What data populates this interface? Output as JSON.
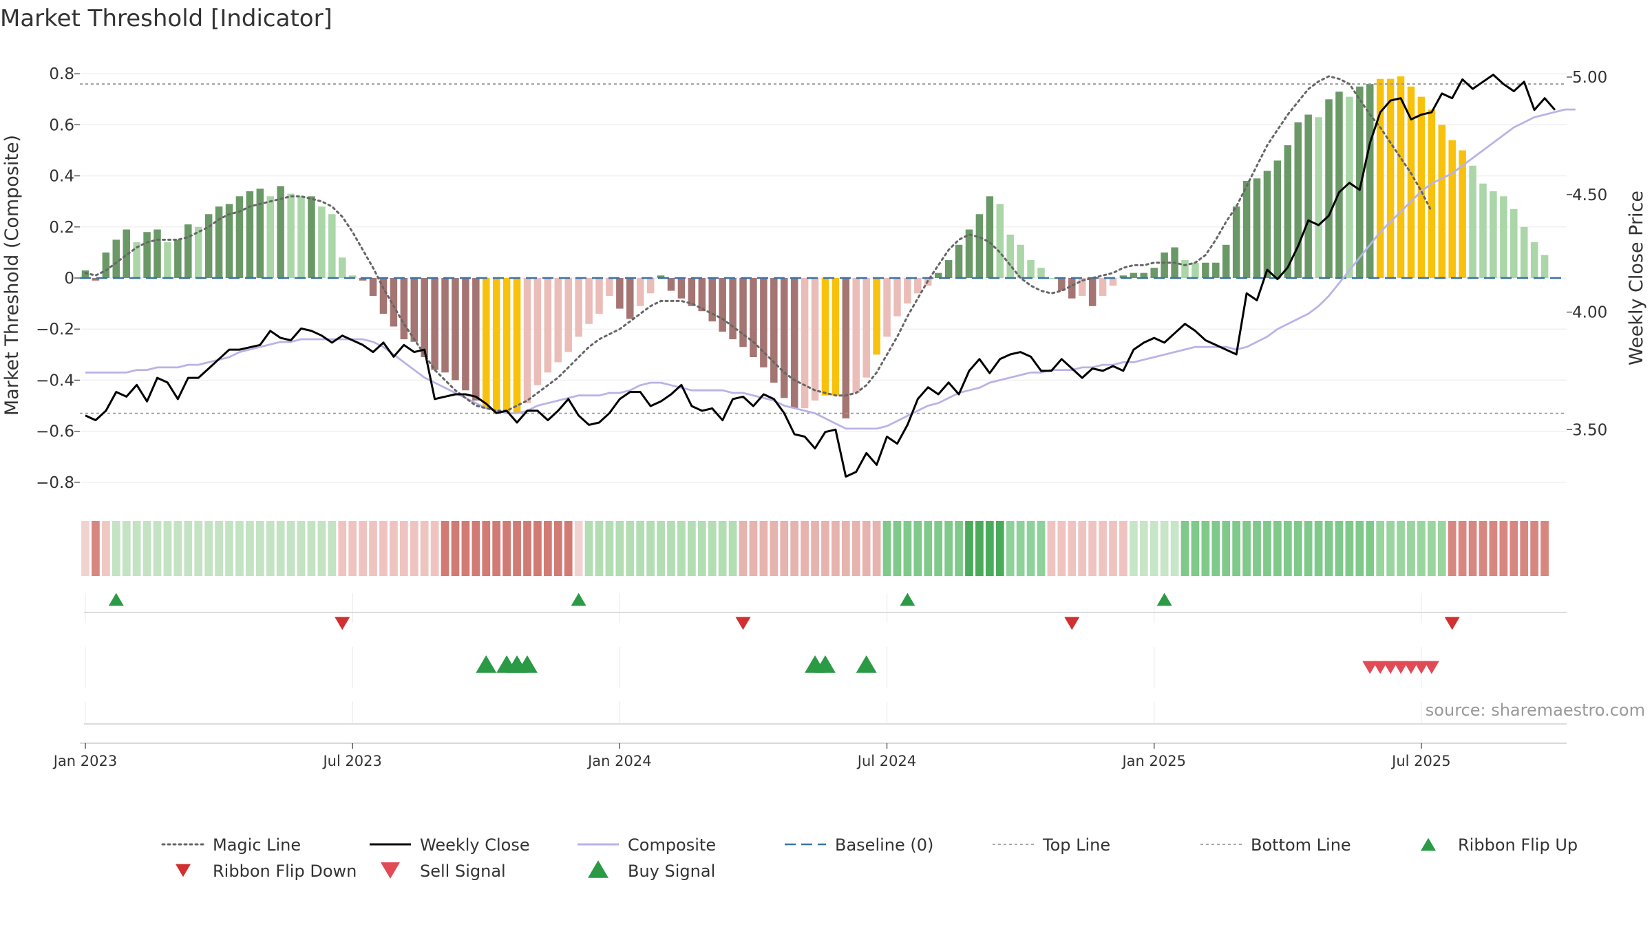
{
  "chart_data": {
    "type": "bar",
    "title": "Market Threshold [Indicator]",
    "ylabel": "Market Threshold (Composite)",
    "y2label": "Weekly Close Price",
    "ylim": [
      -0.86,
      0.84
    ],
    "y2lim": [
      3.2,
      5.06
    ],
    "yticks": [
      {
        "v": 0.8,
        "label": "0.8"
      },
      {
        "v": 0.6,
        "label": "0.6"
      },
      {
        "v": 0.4,
        "label": "0.4"
      },
      {
        "v": 0.2,
        "label": "0.2"
      },
      {
        "v": 0,
        "label": "0"
      },
      {
        "v": -0.2,
        "label": "−0.2"
      },
      {
        "v": -0.4,
        "label": "−0.4"
      },
      {
        "v": -0.6,
        "label": "−0.6"
      },
      {
        "v": -0.8,
        "label": "−0.8"
      }
    ],
    "y2ticks": [
      {
        "v": 5.0,
        "label": "5.00"
      },
      {
        "v": 4.5,
        "label": "4.50"
      },
      {
        "v": 4.0,
        "label": "4.00"
      },
      {
        "v": 3.5,
        "label": "3.50"
      }
    ],
    "xticks": [
      {
        "week": 0,
        "label": "Jan 2023"
      },
      {
        "week": 26,
        "label": "Jul 2023"
      },
      {
        "week": 52,
        "label": "Jan 2024"
      },
      {
        "week": 78,
        "label": "Jul 2024"
      },
      {
        "week": 104,
        "label": "Jan 2025"
      },
      {
        "week": 130,
        "label": "Jul 2025"
      }
    ],
    "top_line": 0.76,
    "bottom_line": -0.53,
    "histogram": [
      0.03,
      -0.01,
      0.1,
      0.15,
      0.19,
      0.14,
      0.18,
      0.19,
      0.14,
      0.15,
      0.21,
      0.2,
      0.25,
      0.28,
      0.29,
      0.32,
      0.34,
      0.35,
      0.32,
      0.36,
      0.33,
      0.32,
      0.32,
      0.28,
      0.25,
      0.08,
      0.01,
      -0.01,
      -0.07,
      -0.14,
      -0.19,
      -0.24,
      -0.25,
      -0.31,
      -0.36,
      -0.37,
      -0.4,
      -0.44,
      -0.48,
      -0.51,
      -0.53,
      -0.53,
      -0.53,
      -0.49,
      -0.42,
      -0.37,
      -0.33,
      -0.29,
      -0.23,
      -0.18,
      -0.14,
      -0.07,
      -0.12,
      -0.16,
      -0.11,
      -0.06,
      0.01,
      -0.05,
      -0.08,
      -0.11,
      -0.13,
      -0.17,
      -0.21,
      -0.24,
      -0.27,
      -0.31,
      -0.35,
      -0.41,
      -0.47,
      -0.51,
      -0.51,
      -0.48,
      -0.46,
      -0.46,
      -0.55,
      -0.45,
      -0.39,
      -0.3,
      -0.23,
      -0.15,
      -0.1,
      -0.06,
      -0.03,
      0.02,
      0.07,
      0.13,
      0.19,
      0.25,
      0.32,
      0.29,
      0.17,
      0.13,
      0.07,
      0.04,
      0.0,
      -0.05,
      -0.08,
      -0.07,
      -0.11,
      -0.07,
      -0.03,
      0.01,
      0.02,
      0.02,
      0.04,
      0.1,
      0.12,
      0.07,
      0.06,
      0.06,
      0.06,
      0.13,
      0.28,
      0.38,
      0.39,
      0.42,
      0.46,
      0.52,
      0.61,
      0.64,
      0.63,
      0.7,
      0.73,
      0.71,
      0.75,
      0.76,
      0.78,
      0.78,
      0.79,
      0.75,
      0.71,
      0.66,
      0.6,
      0.54,
      0.5,
      0.44,
      0.37,
      0.34,
      0.32,
      0.27,
      0.2,
      0.14,
      0.09
    ],
    "highlight_bars": [
      39,
      40,
      41,
      42,
      72,
      73,
      77,
      126,
      127,
      128,
      129,
      130,
      131,
      132,
      133,
      134
    ],
    "magic_line": [
      0.02,
      0.01,
      0.03,
      0.06,
      0.09,
      0.12,
      0.14,
      0.15,
      0.15,
      0.15,
      0.16,
      0.18,
      0.2,
      0.23,
      0.25,
      0.26,
      0.28,
      0.29,
      0.3,
      0.31,
      0.32,
      0.32,
      0.31,
      0.3,
      0.28,
      0.24,
      0.18,
      0.11,
      0.04,
      -0.04,
      -0.11,
      -0.18,
      -0.24,
      -0.3,
      -0.36,
      -0.4,
      -0.44,
      -0.47,
      -0.5,
      -0.51,
      -0.52,
      -0.52,
      -0.5,
      -0.48,
      -0.45,
      -0.42,
      -0.39,
      -0.35,
      -0.31,
      -0.27,
      -0.24,
      -0.22,
      -0.2,
      -0.17,
      -0.14,
      -0.11,
      -0.09,
      -0.09,
      -0.09,
      -0.1,
      -0.12,
      -0.14,
      -0.16,
      -0.19,
      -0.22,
      -0.25,
      -0.29,
      -0.33,
      -0.37,
      -0.4,
      -0.42,
      -0.44,
      -0.45,
      -0.46,
      -0.46,
      -0.45,
      -0.42,
      -0.37,
      -0.3,
      -0.23,
      -0.15,
      -0.08,
      -0.01,
      0.05,
      0.11,
      0.15,
      0.17,
      0.16,
      0.14,
      0.1,
      0.05,
      0.0,
      -0.03,
      -0.05,
      -0.06,
      -0.05,
      -0.03,
      -0.01,
      0.0,
      0.01,
      0.02,
      0.04,
      0.05,
      0.05,
      0.06,
      0.06,
      0.06,
      0.05,
      0.06,
      0.09,
      0.15,
      0.22,
      0.28,
      0.36,
      0.44,
      0.52,
      0.58,
      0.64,
      0.69,
      0.74,
      0.77,
      0.79,
      0.78,
      0.76,
      0.7,
      0.64,
      0.59,
      0.53,
      0.47,
      0.41,
      0.34,
      0.26
    ],
    "weekly_close": [
      3.56,
      3.54,
      3.58,
      3.66,
      3.64,
      3.69,
      3.62,
      3.72,
      3.7,
      3.63,
      3.72,
      3.72,
      3.76,
      3.8,
      3.84,
      3.84,
      3.85,
      3.86,
      3.92,
      3.89,
      3.88,
      3.93,
      3.92,
      3.9,
      3.87,
      3.9,
      3.88,
      3.86,
      3.83,
      3.87,
      3.81,
      3.86,
      3.83,
      3.84,
      3.63,
      3.64,
      3.65,
      3.65,
      3.64,
      3.61,
      3.57,
      3.58,
      3.53,
      3.58,
      3.58,
      3.54,
      3.58,
      3.63,
      3.56,
      3.52,
      3.53,
      3.57,
      3.63,
      3.66,
      3.66,
      3.6,
      3.62,
      3.65,
      3.69,
      3.6,
      3.58,
      3.59,
      3.54,
      3.63,
      3.64,
      3.6,
      3.65,
      3.63,
      3.57,
      3.48,
      3.47,
      3.42,
      3.49,
      3.5,
      3.3,
      3.32,
      3.4,
      3.35,
      3.47,
      3.44,
      3.52,
      3.63,
      3.68,
      3.65,
      3.7,
      3.65,
      3.75,
      3.8,
      3.74,
      3.8,
      3.82,
      3.83,
      3.81,
      3.75,
      3.75,
      3.8,
      3.76,
      3.72,
      3.76,
      3.75,
      3.77,
      3.75,
      3.84,
      3.87,
      3.89,
      3.87,
      3.91,
      3.95,
      3.92,
      3.88,
      3.86,
      3.84,
      3.82,
      4.08,
      4.05,
      4.18,
      4.14,
      4.19,
      4.28,
      4.39,
      4.37,
      4.41,
      4.51,
      4.55,
      4.52,
      4.72,
      4.85,
      4.9,
      4.91,
      4.82,
      4.84,
      4.85,
      4.93,
      4.91,
      4.99,
      4.95,
      4.98,
      5.01,
      4.97,
      4.94,
      4.98,
      4.86,
      4.91,
      4.86
    ],
    "composite": [
      -0.37,
      -0.37,
      -0.37,
      -0.37,
      -0.37,
      -0.36,
      -0.36,
      -0.35,
      -0.35,
      -0.35,
      -0.34,
      -0.34,
      -0.33,
      -0.32,
      -0.31,
      -0.29,
      -0.28,
      -0.27,
      -0.26,
      -0.25,
      -0.25,
      -0.24,
      -0.24,
      -0.24,
      -0.24,
      -0.24,
      -0.24,
      -0.24,
      -0.25,
      -0.27,
      -0.3,
      -0.33,
      -0.36,
      -0.39,
      -0.41,
      -0.43,
      -0.45,
      -0.47,
      -0.49,
      -0.51,
      -0.52,
      -0.53,
      -0.53,
      -0.52,
      -0.5,
      -0.49,
      -0.48,
      -0.47,
      -0.46,
      -0.46,
      -0.46,
      -0.45,
      -0.45,
      -0.44,
      -0.42,
      -0.41,
      -0.41,
      -0.42,
      -0.43,
      -0.44,
      -0.44,
      -0.44,
      -0.44,
      -0.45,
      -0.45,
      -0.46,
      -0.47,
      -0.48,
      -0.5,
      -0.51,
      -0.52,
      -0.53,
      -0.55,
      -0.57,
      -0.59,
      -0.59,
      -0.59,
      -0.59,
      -0.58,
      -0.56,
      -0.54,
      -0.52,
      -0.5,
      -0.49,
      -0.47,
      -0.45,
      -0.44,
      -0.43,
      -0.41,
      -0.4,
      -0.39,
      -0.38,
      -0.37,
      -0.37,
      -0.36,
      -0.36,
      -0.36,
      -0.35,
      -0.35,
      -0.34,
      -0.34,
      -0.33,
      -0.33,
      -0.32,
      -0.31,
      -0.3,
      -0.29,
      -0.28,
      -0.27,
      -0.27,
      -0.27,
      -0.27,
      -0.28,
      -0.27,
      -0.25,
      -0.23,
      -0.2,
      -0.18,
      -0.16,
      -0.14,
      -0.11,
      -0.07,
      -0.02,
      0.03,
      0.08,
      0.13,
      0.18,
      0.22,
      0.26,
      0.3,
      0.34,
      0.37,
      0.39,
      0.41,
      0.44,
      0.47,
      0.5,
      0.53,
      0.56,
      0.59,
      0.61,
      0.63,
      0.64,
      0.65,
      0.66,
      0.66
    ],
    "ribbon_groups": [
      {
        "start": 0,
        "end": 1,
        "color": "#f0d3d0"
      },
      {
        "start": 1,
        "end": 2,
        "color": "#d88780"
      },
      {
        "start": 2,
        "end": 3,
        "color": "#efc8c4"
      },
      {
        "start": 3,
        "end": 25,
        "color": "#c3e3c3"
      },
      {
        "start": 25,
        "end": 35,
        "color": "#efc4c0"
      },
      {
        "start": 35,
        "end": 48,
        "color": "#d27a74"
      },
      {
        "start": 48,
        "end": 49,
        "color": "#f0d3d0"
      },
      {
        "start": 49,
        "end": 64,
        "color": "#b3ddb3"
      },
      {
        "start": 64,
        "end": 78,
        "color": "#e7b3ae"
      },
      {
        "start": 78,
        "end": 86,
        "color": "#7fc98a"
      },
      {
        "start": 86,
        "end": 90,
        "color": "#4aac5a"
      },
      {
        "start": 90,
        "end": 94,
        "color": "#8fd19a"
      },
      {
        "start": 94,
        "end": 102,
        "color": "#efc4c0"
      },
      {
        "start": 102,
        "end": 107,
        "color": "#c7e5c7"
      },
      {
        "start": 107,
        "end": 126,
        "color": "#7fc98a"
      },
      {
        "start": 126,
        "end": 133,
        "color": "#9ad49f"
      },
      {
        "start": 133,
        "end": 143,
        "color": "#d88780"
      }
    ],
    "ribbon_flip_up": [
      3,
      48,
      80,
      105
    ],
    "ribbon_flip_down": [
      25,
      64,
      96,
      133
    ],
    "buy_signals": [
      39,
      41,
      42,
      43,
      71,
      72,
      76
    ],
    "sell_signals": [
      125,
      126,
      127,
      128,
      129,
      130,
      131
    ],
    "legend": [
      {
        "label": "Magic Line",
        "kind": "dotted",
        "color": "#666666"
      },
      {
        "label": "Weekly Close",
        "kind": "solid",
        "color": "#000000"
      },
      {
        "label": "Composite",
        "kind": "solid",
        "color": "#b9b3e6"
      },
      {
        "label": "Baseline (0)",
        "kind": "dashed",
        "color": "#3a72a8"
      },
      {
        "label": "Top Line",
        "kind": "thin-dotted",
        "color": "#999999"
      },
      {
        "label": "Bottom Line",
        "kind": "thin-dotted",
        "color": "#999999"
      },
      {
        "label": "Ribbon Flip Up",
        "kind": "tri-up-small",
        "color": "#2a9a45"
      },
      {
        "label": "Ribbon Flip Down",
        "kind": "tri-down-small",
        "color": "#d03030"
      },
      {
        "label": "Sell Signal",
        "kind": "tri-down",
        "color": "#e24a55"
      },
      {
        "label": "Buy Signal",
        "kind": "tri-up",
        "color": "#2a9a45"
      }
    ],
    "colors": {
      "dark_green": "#6a9967",
      "light_green": "#aad6a8",
      "dark_red": "#a47572",
      "light_red": "#ebbdb8",
      "highlight": "#f8c10b",
      "magic_line": "#666666",
      "weekly_close": "#000000",
      "composite": "#b9b3e6",
      "baseline": "#3a72a8",
      "ref_line": "#999999",
      "buy": "#2a9a45",
      "sell": "#e24a55"
    }
  },
  "source_text": "source: sharemaestro.com"
}
